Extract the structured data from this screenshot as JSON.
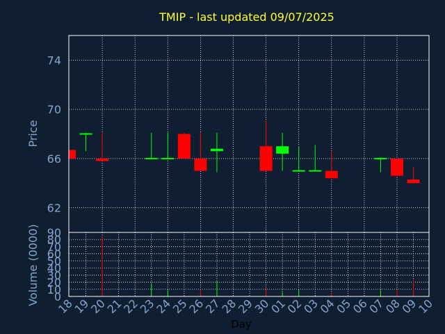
{
  "chart_data": {
    "type": "candlestick",
    "title": "TMIP - last updated 09/07/2025",
    "xlabel": "Day",
    "price_panel": {
      "ylabel": "Price",
      "ylim": [
        60,
        76
      ],
      "yticks": [
        62,
        66,
        70,
        74
      ]
    },
    "volume_panel": {
      "ylabel": "Volume (0000)",
      "ylim": [
        0,
        90
      ],
      "yticks": [
        0,
        10,
        20,
        30,
        40,
        50,
        60,
        70,
        80,
        90
      ]
    },
    "x_ticks": [
      "18",
      "19",
      "20",
      "21",
      "22",
      "23",
      "24",
      "25",
      "26",
      "27",
      "28",
      "29",
      "30",
      "01",
      "02",
      "03",
      "04",
      "05",
      "06",
      "07",
      "08",
      "09",
      "10"
    ],
    "candles": [
      {
        "day": "18",
        "open": 66.0,
        "high": 66.7,
        "low": 66.0,
        "close": 66.7,
        "volume": 0.5,
        "color": "#ff0000"
      },
      {
        "day": "19",
        "open": 68.0,
        "high": 68.1,
        "low": 66.6,
        "close": 68.0,
        "volume": 0.5,
        "color": "#00ff00"
      },
      {
        "day": "20",
        "open": 66.0,
        "high": 68.1,
        "low": 65.8,
        "close": 65.8,
        "volume": 84,
        "color": "#ff0000"
      },
      {
        "day": "23",
        "open": 66.0,
        "high": 68.1,
        "low": 66.0,
        "close": 66.0,
        "volume": 18,
        "color": "#00ff00"
      },
      {
        "day": "24",
        "open": 66.0,
        "high": 68.1,
        "low": 66.0,
        "close": 66.0,
        "volume": 9,
        "color": "#00ff00"
      },
      {
        "day": "25",
        "open": 68.0,
        "high": 68.1,
        "low": 66.0,
        "close": 66.0,
        "volume": 1,
        "color": "#ff0000"
      },
      {
        "day": "26",
        "open": 66.0,
        "high": 68.1,
        "low": 65.0,
        "close": 65.0,
        "volume": 10,
        "color": "#ff0000"
      },
      {
        "day": "27",
        "open": 66.6,
        "high": 68.1,
        "low": 64.9,
        "close": 66.8,
        "volume": 22,
        "color": "#00ff00"
      },
      {
        "day": "30",
        "open": 67.0,
        "high": 69.1,
        "low": 65.0,
        "close": 65.0,
        "volume": 12,
        "color": "#ff0000"
      },
      {
        "day": "01",
        "open": 66.4,
        "high": 68.1,
        "low": 65.0,
        "close": 67.0,
        "volume": 6,
        "color": "#00ff00"
      },
      {
        "day": "02",
        "open": 65.0,
        "high": 67.0,
        "low": 65.0,
        "close": 65.0,
        "volume": 10,
        "color": "#00ff00"
      },
      {
        "day": "03",
        "open": 65.0,
        "high": 67.1,
        "low": 65.0,
        "close": 65.0,
        "volume": 1,
        "color": "#00ff00"
      },
      {
        "day": "04",
        "open": 65.0,
        "high": 66.6,
        "low": 64.4,
        "close": 64.4,
        "volume": 6,
        "color": "#ff0000"
      },
      {
        "day": "07",
        "open": 66.0,
        "high": 66.1,
        "low": 64.9,
        "close": 66.0,
        "volume": 9,
        "color": "#00ff00"
      },
      {
        "day": "08",
        "open": 66.0,
        "high": 66.0,
        "low": 64.5,
        "close": 64.6,
        "volume": 9,
        "color": "#ff0000"
      },
      {
        "day": "09",
        "open": 64.3,
        "high": 65.3,
        "low": 64.0,
        "close": 64.0,
        "volume": 23,
        "color": "#ff0000"
      }
    ],
    "grid": true,
    "colors": {
      "background": "#0f1e31",
      "frame": "#ffffff",
      "grid": "#ffffff",
      "title": "#ffff33",
      "labels": "#88a4c8",
      "up": "#00ff00",
      "down": "#ff0000"
    }
  }
}
